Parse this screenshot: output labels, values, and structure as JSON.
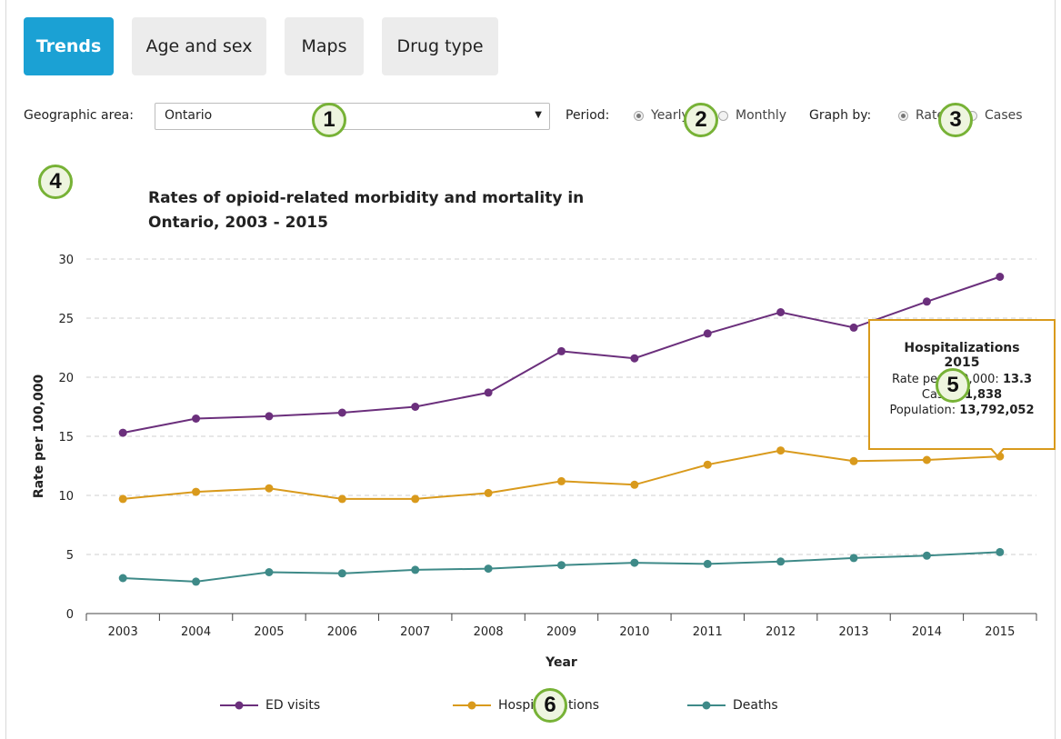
{
  "tabs": [
    {
      "label": "Trends",
      "active": true
    },
    {
      "label": "Age and sex",
      "active": false
    },
    {
      "label": "Maps",
      "active": false
    },
    {
      "label": "Drug type",
      "active": false
    }
  ],
  "controls": {
    "geo_label": "Geographic area:",
    "geo_value": "Ontario",
    "period_label": "Period:",
    "period_options": [
      {
        "label": "Yearly",
        "selected": true
      },
      {
        "label": "Monthly",
        "selected": false
      }
    ],
    "graph_by_label": "Graph by:",
    "graph_by_options": [
      {
        "label": "Rates",
        "selected": true
      },
      {
        "label": "Cases",
        "selected": false
      }
    ]
  },
  "badges": [
    "1",
    "2",
    "3",
    "4",
    "5",
    "6"
  ],
  "chart_title": {
    "line1": "Rates of opioid-related morbidity and mortality in",
    "line2": "Ontario, 2003 - 2015"
  },
  "tooltip": {
    "title": "Hospitalizations",
    "year": "2015",
    "rate_label": "Rate per 100,000:",
    "rate_value": "13.3",
    "cases_label": "Cases:",
    "cases_value": "1,838",
    "population_label": "Population:",
    "population_value": "13,792,052"
  },
  "colors": {
    "ed_visits": "#6b2f7c",
    "hospitalizations": "#d99a1c",
    "deaths": "#3e8a88",
    "tab_active": "#1ba1d4",
    "badge_border": "#77b236"
  },
  "chart_data": {
    "type": "line",
    "title": "Rates of opioid-related morbidity and mortality in Ontario, 2003 - 2015",
    "xlabel": "Year",
    "ylabel": "Rate per 100,000",
    "ylim": [
      0,
      30
    ],
    "yticks": [
      0,
      5,
      10,
      15,
      20,
      25,
      30
    ],
    "grid": "horizontal dashed",
    "legend": "bottom",
    "categories": [
      "2003",
      "2004",
      "2005",
      "2006",
      "2007",
      "2008",
      "2009",
      "2010",
      "2011",
      "2012",
      "2013",
      "2014",
      "2015"
    ],
    "series": [
      {
        "name": "ED visits",
        "color": "#6b2f7c",
        "values": [
          15.3,
          16.5,
          16.7,
          17.0,
          17.5,
          18.7,
          22.2,
          21.6,
          23.7,
          25.5,
          24.2,
          26.4,
          28.5
        ]
      },
      {
        "name": "Hospitalizations",
        "color": "#d99a1c",
        "values": [
          9.7,
          10.3,
          10.6,
          9.7,
          9.7,
          10.2,
          11.2,
          10.9,
          12.6,
          13.8,
          12.9,
          13.0,
          13.3
        ]
      },
      {
        "name": "Deaths",
        "color": "#3e8a88",
        "values": [
          3.0,
          2.7,
          3.5,
          3.4,
          3.7,
          3.8,
          4.1,
          4.3,
          4.2,
          4.4,
          4.7,
          4.9,
          5.2
        ]
      }
    ]
  }
}
